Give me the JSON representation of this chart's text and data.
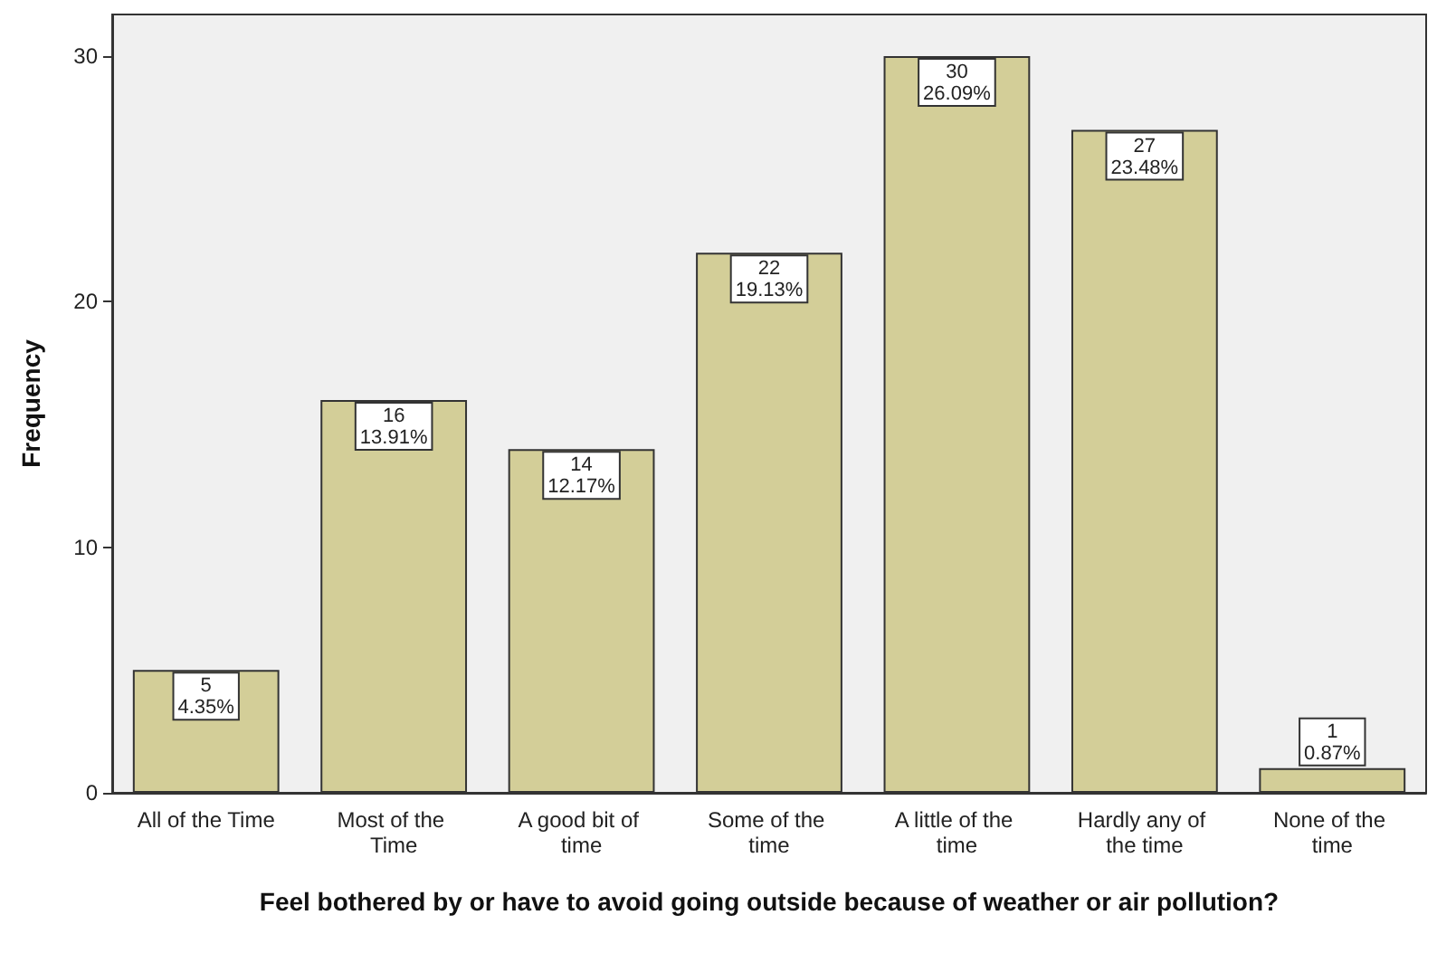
{
  "chart_data": {
    "type": "bar",
    "xlabel": "Feel bothered by or have to avoid going outside because of weather or air pollution?",
    "ylabel": "Frequency",
    "categories": [
      "All of the Time",
      "Most of the Time",
      "A good bit of time",
      "Some of the time",
      "A little of the time",
      "Hardly any of the time",
      "None of the time"
    ],
    "values": [
      5,
      16,
      14,
      22,
      30,
      27,
      1
    ],
    "value_labels": [
      "5\n4.35%",
      "16\n13.91%",
      "14\n12.17%",
      "22\n19.13%",
      "30\n26.09%",
      "27\n23.48%",
      "1\n0.87%"
    ],
    "color": "#d3ce98",
    "ylim": [
      0,
      31.7
    ],
    "yticks": [
      0,
      10,
      20,
      30
    ]
  }
}
